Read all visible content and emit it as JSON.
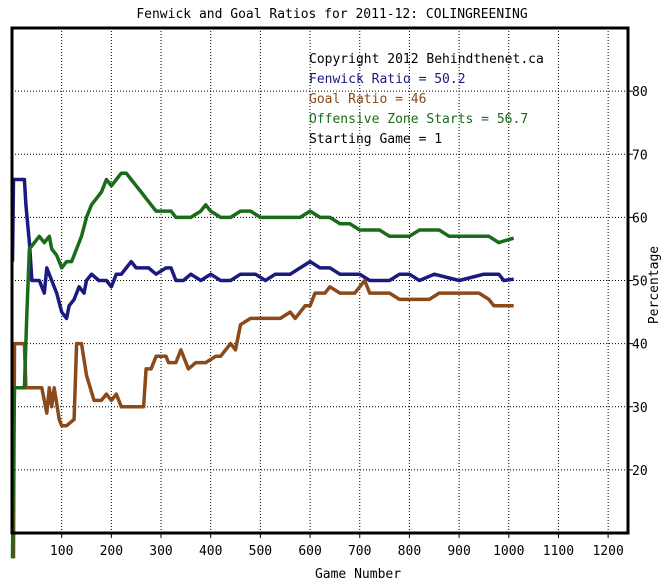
{
  "chart_data": {
    "type": "line",
    "title": "Fenwick and Goal Ratios for 2011-12: COLINGREENING",
    "xlabel": "Game Number",
    "ylabel": "Percentage",
    "xlim": [
      0,
      1240
    ],
    "ylim": [
      10,
      90
    ],
    "x_ticks": [
      100,
      200,
      300,
      400,
      500,
      600,
      700,
      800,
      900,
      1000,
      1100,
      1200
    ],
    "y_ticks": [
      20,
      30,
      40,
      50,
      60,
      70,
      80
    ],
    "grid": true,
    "annotations": [
      {
        "text": "Copyright 2012 Behindthenet.ca",
        "color": "#000000"
      },
      {
        "text": "Fenwick Ratio = 50.2",
        "color": "#1a1a80"
      },
      {
        "text": "Goal Ratio = 46",
        "color": "#8b4a1a"
      },
      {
        "text": "Offensive Zone Starts = 56.7",
        "color": "#1a6b1a"
      },
      {
        "text": "Starting Game = 1",
        "color": "#000000"
      }
    ],
    "series": [
      {
        "color": "#1a1a80",
        "points": [
          [
            1,
            53
          ],
          [
            3,
            66
          ],
          [
            25,
            66
          ],
          [
            28,
            62
          ],
          [
            35,
            56
          ],
          [
            40,
            50
          ],
          [
            55,
            50
          ],
          [
            65,
            48
          ],
          [
            70,
            52
          ],
          [
            80,
            50
          ],
          [
            90,
            48
          ],
          [
            100,
            45
          ],
          [
            110,
            44
          ],
          [
            115,
            46
          ],
          [
            125,
            47
          ],
          [
            135,
            49
          ],
          [
            145,
            48
          ],
          [
            150,
            50
          ],
          [
            160,
            51
          ],
          [
            175,
            50
          ],
          [
            190,
            50
          ],
          [
            200,
            49
          ],
          [
            210,
            51
          ],
          [
            220,
            51
          ],
          [
            230,
            52
          ],
          [
            240,
            53
          ],
          [
            250,
            52
          ],
          [
            275,
            52
          ],
          [
            290,
            51
          ],
          [
            310,
            52
          ],
          [
            320,
            52
          ],
          [
            330,
            50
          ],
          [
            345,
            50
          ],
          [
            360,
            51
          ],
          [
            380,
            50
          ],
          [
            400,
            51
          ],
          [
            420,
            50
          ],
          [
            440,
            50
          ],
          [
            460,
            51
          ],
          [
            490,
            51
          ],
          [
            510,
            50
          ],
          [
            530,
            51
          ],
          [
            560,
            51
          ],
          [
            580,
            52
          ],
          [
            600,
            53
          ],
          [
            620,
            52
          ],
          [
            640,
            52
          ],
          [
            660,
            51
          ],
          [
            680,
            51
          ],
          [
            700,
            51
          ],
          [
            720,
            50
          ],
          [
            740,
            50
          ],
          [
            760,
            50
          ],
          [
            780,
            51
          ],
          [
            800,
            51
          ],
          [
            820,
            50
          ],
          [
            850,
            51
          ],
          [
            900,
            50
          ],
          [
            950,
            51
          ],
          [
            980,
            51
          ],
          [
            990,
            50
          ],
          [
            1010,
            50.2
          ]
        ]
      },
      {
        "color": "#8b4a1a",
        "points": [
          [
            3,
            6
          ],
          [
            5,
            40
          ],
          [
            25,
            40
          ],
          [
            28,
            33
          ],
          [
            50,
            33
          ],
          [
            60,
            33
          ],
          [
            70,
            29
          ],
          [
            75,
            33
          ],
          [
            80,
            30
          ],
          [
            85,
            33
          ],
          [
            95,
            28
          ],
          [
            100,
            27
          ],
          [
            110,
            27
          ],
          [
            125,
            28
          ],
          [
            130,
            40
          ],
          [
            140,
            40
          ],
          [
            150,
            35
          ],
          [
            165,
            31
          ],
          [
            180,
            31
          ],
          [
            190,
            32
          ],
          [
            200,
            31
          ],
          [
            210,
            32
          ],
          [
            220,
            30
          ],
          [
            240,
            30
          ],
          [
            265,
            30
          ],
          [
            270,
            36
          ],
          [
            280,
            36
          ],
          [
            290,
            38
          ],
          [
            310,
            38
          ],
          [
            315,
            37
          ],
          [
            330,
            37
          ],
          [
            340,
            39
          ],
          [
            345,
            38
          ],
          [
            355,
            36
          ],
          [
            370,
            37
          ],
          [
            390,
            37
          ],
          [
            410,
            38
          ],
          [
            420,
            38
          ],
          [
            430,
            39
          ],
          [
            440,
            40
          ],
          [
            450,
            39
          ],
          [
            460,
            43
          ],
          [
            480,
            44
          ],
          [
            500,
            44
          ],
          [
            520,
            44
          ],
          [
            540,
            44
          ],
          [
            560,
            45
          ],
          [
            570,
            44
          ],
          [
            590,
            46
          ],
          [
            600,
            46
          ],
          [
            610,
            48
          ],
          [
            630,
            48
          ],
          [
            640,
            49
          ],
          [
            660,
            48
          ],
          [
            690,
            48
          ],
          [
            710,
            50
          ],
          [
            720,
            48
          ],
          [
            740,
            48
          ],
          [
            760,
            48
          ],
          [
            780,
            47
          ],
          [
            800,
            47
          ],
          [
            820,
            47
          ],
          [
            840,
            47
          ],
          [
            860,
            48
          ],
          [
            900,
            48
          ],
          [
            940,
            48
          ],
          [
            960,
            47
          ],
          [
            970,
            46
          ],
          [
            985,
            46
          ],
          [
            1000,
            46
          ],
          [
            1010,
            46
          ]
        ]
      },
      {
        "color": "#1a6b1a",
        "points": [
          [
            1,
            6
          ],
          [
            3,
            23
          ],
          [
            5,
            33
          ],
          [
            15,
            33
          ],
          [
            25,
            33
          ],
          [
            30,
            45
          ],
          [
            35,
            55
          ],
          [
            45,
            56
          ],
          [
            55,
            57
          ],
          [
            65,
            56
          ],
          [
            75,
            57
          ],
          [
            80,
            55
          ],
          [
            90,
            54
          ],
          [
            100,
            52
          ],
          [
            110,
            53
          ],
          [
            120,
            53
          ],
          [
            130,
            55
          ],
          [
            140,
            57
          ],
          [
            150,
            60
          ],
          [
            160,
            62
          ],
          [
            170,
            63
          ],
          [
            180,
            64
          ],
          [
            190,
            66
          ],
          [
            200,
            65
          ],
          [
            210,
            66
          ],
          [
            220,
            67
          ],
          [
            230,
            67
          ],
          [
            240,
            66
          ],
          [
            250,
            65
          ],
          [
            260,
            64
          ],
          [
            270,
            63
          ],
          [
            280,
            62
          ],
          [
            290,
            61
          ],
          [
            300,
            61
          ],
          [
            320,
            61
          ],
          [
            330,
            60
          ],
          [
            340,
            60
          ],
          [
            360,
            60
          ],
          [
            380,
            61
          ],
          [
            390,
            62
          ],
          [
            400,
            61
          ],
          [
            420,
            60
          ],
          [
            440,
            60
          ],
          [
            460,
            61
          ],
          [
            480,
            61
          ],
          [
            500,
            60
          ],
          [
            520,
            60
          ],
          [
            540,
            60
          ],
          [
            560,
            60
          ],
          [
            580,
            60
          ],
          [
            600,
            61
          ],
          [
            620,
            60
          ],
          [
            640,
            60
          ],
          [
            660,
            59
          ],
          [
            680,
            59
          ],
          [
            700,
            58
          ],
          [
            720,
            58
          ],
          [
            740,
            58
          ],
          [
            760,
            57
          ],
          [
            780,
            57
          ],
          [
            800,
            57
          ],
          [
            820,
            58
          ],
          [
            840,
            58
          ],
          [
            860,
            58
          ],
          [
            880,
            57
          ],
          [
            900,
            57
          ],
          [
            920,
            57
          ],
          [
            940,
            57
          ],
          [
            960,
            57
          ],
          [
            980,
            56
          ],
          [
            1000,
            56.5
          ],
          [
            1010,
            56.7
          ]
        ]
      }
    ]
  }
}
